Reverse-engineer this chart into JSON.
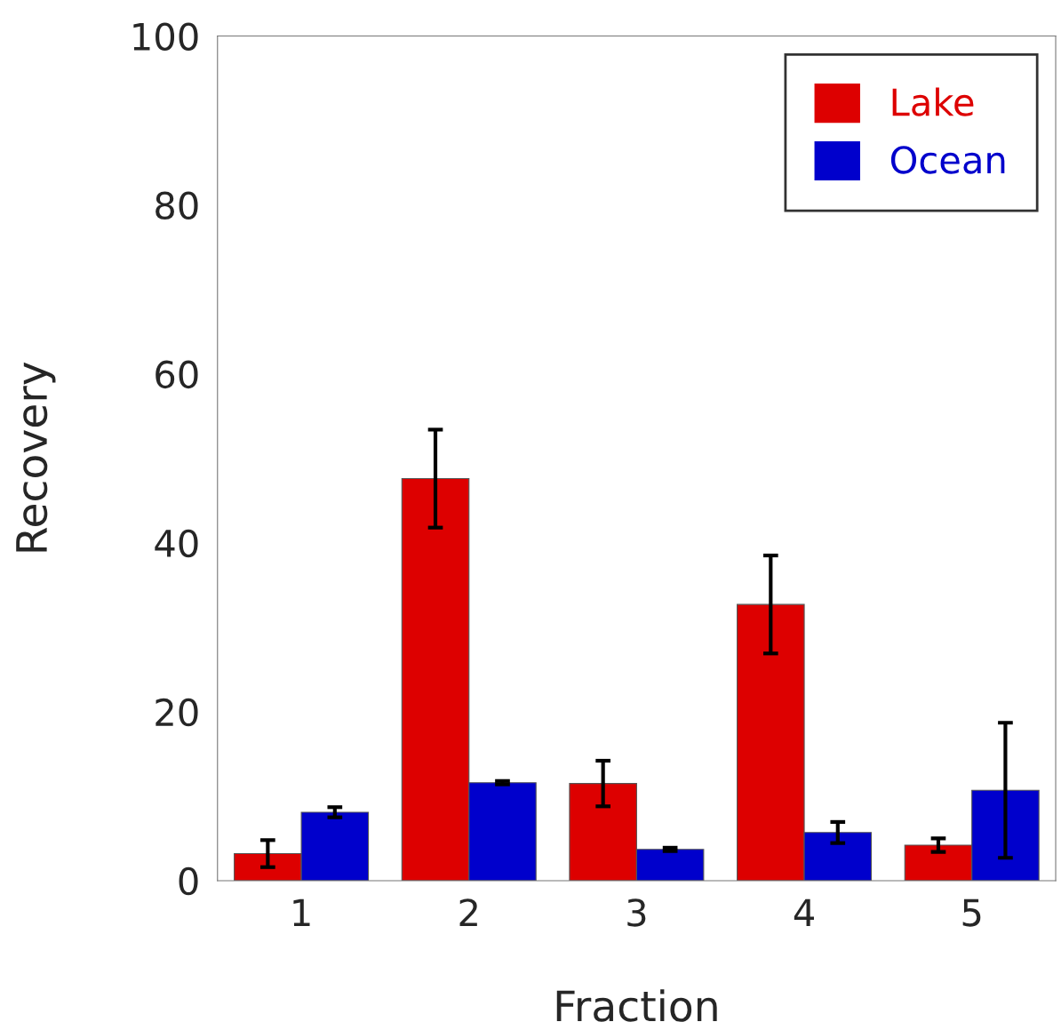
{
  "chart_data": {
    "type": "bar",
    "xlabel": "Fraction",
    "ylabel": "Recovery",
    "categories": [
      "1",
      "2",
      "3",
      "4",
      "5"
    ],
    "series": [
      {
        "name": "Lake",
        "color": "#dd0000",
        "values": [
          3.2,
          47.6,
          11.5,
          32.7,
          4.2
        ],
        "errors": [
          1.6,
          5.8,
          2.7,
          5.8,
          0.8
        ]
      },
      {
        "name": "Ocean",
        "color": "#0000cc",
        "values": [
          8.1,
          11.6,
          3.7,
          5.7,
          10.7
        ],
        "errors": [
          0.6,
          0.2,
          0.2,
          1.25,
          8.0
        ]
      }
    ],
    "ylim": [
      0,
      100
    ],
    "yticks": [
      0,
      20,
      40,
      60,
      80,
      100
    ],
    "grid": false,
    "legend": "top right"
  }
}
